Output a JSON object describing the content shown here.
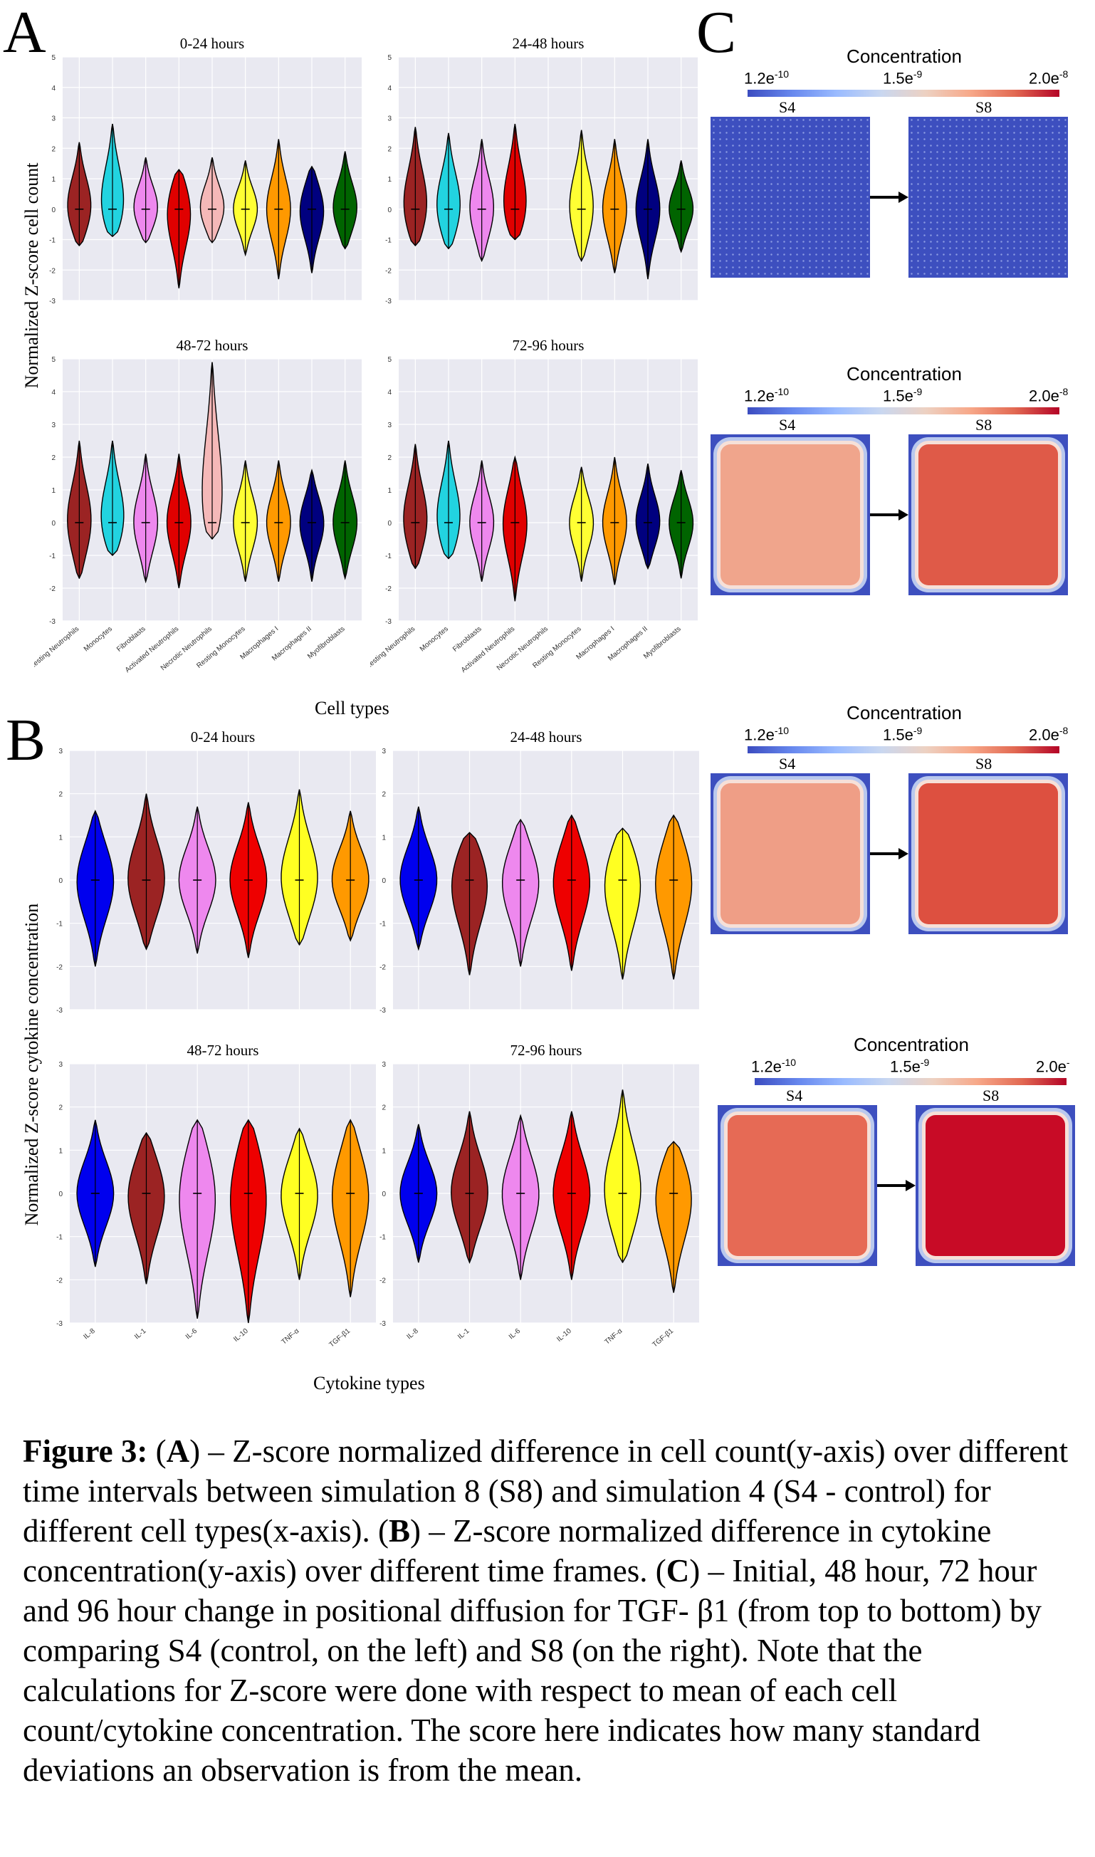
{
  "panel_letters": {
    "a": "A",
    "b": "B",
    "c": "C"
  },
  "panel_a": {
    "ylabel": "Normalized Z-score cell count",
    "xlabel": "Cell types",
    "categories": [
      "Resting Neutrophils",
      "Monocytes",
      "Fibroblasts",
      "Activated Neutrophils",
      "Necrotic Neutrophils",
      "Resting Monocytes",
      "Macrophages I",
      "Macrophages II",
      "Myofibroblasts"
    ],
    "colors": [
      "#9b2323",
      "#22d3e0",
      "#ee88ee",
      "#e00000",
      "#f5b8b8",
      "#ffff33",
      "#ff9900",
      "#00007f",
      "#006400"
    ]
  },
  "panel_b": {
    "ylabel": "Normalized Z-score cytokine concentration",
    "xlabel": "Cytokine types",
    "categories": [
      "IL-8",
      "IL-1",
      "IL-6",
      "IL-10",
      "TNF-α",
      "TGF-β1"
    ],
    "colors": [
      "#0000ee",
      "#9b2323",
      "#ee88ee",
      "#ee0000",
      "#ffff22",
      "#ff9900"
    ]
  },
  "chart_data": [
    {
      "type": "violin",
      "panel": "A",
      "title": "0-24 hours",
      "ylim": [
        -3,
        5
      ],
      "grid": true,
      "categories": [
        "Resting Neutrophils",
        "Monocytes",
        "Fibroblasts",
        "Activated Neutrophils",
        "Necrotic Neutrophils",
        "Resting Monocytes",
        "Macrophages I",
        "Macrophages II",
        "Myofibroblasts"
      ],
      "min": [
        -1.2,
        -0.9,
        -1.1,
        -2.6,
        -1.1,
        -1.5,
        -2.3,
        -2.1,
        -1.3
      ],
      "max": [
        2.2,
        2.8,
        1.7,
        1.3,
        1.7,
        1.6,
        2.3,
        1.4,
        1.9
      ],
      "median": [
        0,
        0,
        0,
        0,
        0,
        0,
        0,
        0,
        0
      ]
    },
    {
      "type": "violin",
      "panel": "A",
      "title": "24-48 hours",
      "ylim": [
        -3,
        5
      ],
      "grid": true,
      "categories": [
        "Resting Neutrophils",
        "Monocytes",
        "Fibroblasts",
        "Activated Neutrophils",
        "Necrotic Neutrophils",
        "Resting Monocytes",
        "Macrophages I",
        "Macrophages II",
        "Myofibroblasts"
      ],
      "min": [
        -1.2,
        -1.3,
        -1.7,
        -1.0,
        null,
        -1.7,
        -2.1,
        -2.3,
        -1.4
      ],
      "max": [
        2.7,
        2.5,
        2.3,
        2.8,
        null,
        2.6,
        2.3,
        2.3,
        1.6
      ],
      "median": [
        0,
        0,
        0,
        0,
        null,
        0,
        0,
        0,
        0
      ]
    },
    {
      "type": "violin",
      "panel": "A",
      "title": "48-72 hours",
      "ylim": [
        -3,
        5
      ],
      "grid": true,
      "categories": [
        "Resting Neutrophils",
        "Monocytes",
        "Fibroblasts",
        "Activated Neutrophils",
        "Necrotic Neutrophils",
        "Resting Monocytes",
        "Macrophages I",
        "Macrophages II",
        "Myofibroblasts"
      ],
      "min": [
        -1.7,
        -1.0,
        -1.8,
        -2.0,
        -0.5,
        -1.8,
        -1.8,
        -1.8,
        -1.7
      ],
      "max": [
        2.5,
        2.5,
        2.1,
        2.1,
        4.9,
        1.9,
        1.9,
        1.6,
        1.9
      ],
      "median": [
        0,
        0,
        0,
        0,
        0,
        0,
        0,
        0,
        0
      ]
    },
    {
      "type": "violin",
      "panel": "A",
      "title": "72-96 hours",
      "ylim": [
        -3,
        5
      ],
      "grid": true,
      "categories": [
        "Resting Neutrophils",
        "Monocytes",
        "Fibroblasts",
        "Activated Neutrophils",
        "Necrotic Neutrophils",
        "Resting Monocytes",
        "Macrophages I",
        "Macrophages II",
        "Myofibroblasts"
      ],
      "min": [
        -1.4,
        -1.1,
        -1.8,
        -2.4,
        null,
        -1.8,
        -1.9,
        -1.4,
        -1.7
      ],
      "max": [
        2.4,
        2.5,
        1.9,
        2.0,
        null,
        1.7,
        2.0,
        1.8,
        1.6
      ],
      "median": [
        0,
        0,
        0,
        0,
        null,
        0,
        0,
        0,
        0
      ]
    },
    {
      "type": "violin",
      "panel": "B",
      "title": "0-24 hours",
      "ylim": [
        -3,
        3
      ],
      "grid": true,
      "categories": [
        "IL-8",
        "IL-1",
        "IL-6",
        "IL-10",
        "TNF-α",
        "TGF-β1"
      ],
      "min": [
        -2.0,
        -1.6,
        -1.7,
        -1.8,
        -1.5,
        -1.4
      ],
      "max": [
        1.6,
        2.0,
        1.7,
        1.8,
        2.1,
        1.6
      ],
      "median": [
        0,
        0,
        0,
        0,
        0,
        0
      ]
    },
    {
      "type": "violin",
      "panel": "B",
      "title": "24-48 hours",
      "ylim": [
        -3,
        3
      ],
      "grid": true,
      "categories": [
        "IL-8",
        "IL-1",
        "IL-6",
        "IL-10",
        "TNF-α",
        "TGF-β1"
      ],
      "min": [
        -1.6,
        -2.2,
        -2.0,
        -2.1,
        -2.3,
        -2.3
      ],
      "max": [
        1.7,
        1.1,
        1.4,
        1.5,
        1.2,
        1.5
      ],
      "median": [
        0,
        0,
        0,
        0,
        0,
        0
      ]
    },
    {
      "type": "violin",
      "panel": "B",
      "title": "48-72 hours",
      "ylim": [
        -3,
        3
      ],
      "grid": true,
      "categories": [
        "IL-8",
        "IL-1",
        "IL-6",
        "IL-10",
        "TNF-α",
        "TGF-β1"
      ],
      "min": [
        -1.7,
        -2.1,
        -2.9,
        -3.0,
        -2.0,
        -2.4
      ],
      "max": [
        1.7,
        1.4,
        1.7,
        1.7,
        1.5,
        1.7
      ],
      "median": [
        0,
        0,
        0,
        0,
        0,
        0
      ]
    },
    {
      "type": "violin",
      "panel": "B",
      "title": "72-96 hours",
      "ylim": [
        -3,
        3
      ],
      "grid": true,
      "categories": [
        "IL-8",
        "IL-1",
        "IL-6",
        "IL-10",
        "TNF-α",
        "TGF-β1"
      ],
      "min": [
        -1.6,
        -1.6,
        -2.0,
        -2.0,
        -1.6,
        -2.3
      ],
      "max": [
        1.6,
        1.9,
        1.8,
        1.9,
        2.4,
        1.2
      ],
      "median": [
        0,
        0,
        0,
        0,
        0,
        0
      ]
    }
  ],
  "panel_c": {
    "rows": [
      {
        "title": "Concentration",
        "min_label": "1.2e",
        "min_exp": "-10",
        "mid_label": "1.5e",
        "mid_exp": "-9",
        "max_label": "2.0e",
        "max_exp": "-8",
        "left_label": "S4",
        "right_label": "S8",
        "left_fill": "#3d4fbf",
        "right_fill": "#3d4fbf",
        "speckle": true
      },
      {
        "title": "Concentration",
        "min_label": "1.2e",
        "min_exp": "-10",
        "mid_label": "1.5e",
        "mid_exp": "-9",
        "max_label": "2.0e",
        "max_exp": "-8",
        "left_label": "S4",
        "right_label": "S8",
        "left_fill": "#f0a58c",
        "right_fill": "#df5a48"
      },
      {
        "title": "Concentration",
        "min_label": "1.2e",
        "min_exp": "-10",
        "mid_label": "1.5e",
        "mid_exp": "-9",
        "max_label": "2.0e",
        "max_exp": "-8",
        "left_label": "S4",
        "right_label": "S8",
        "left_fill": "#ef9e86",
        "right_fill": "#dd5040"
      },
      {
        "title": "Concentration",
        "min_label": "1.2e",
        "min_exp": "-10",
        "mid_label": "1.5e",
        "mid_exp": "-9",
        "max_label": "2.0e",
        "max_exp": "-",
        "left_label": "S4",
        "right_label": "S8",
        "left_fill": "#e66a55",
        "right_fill": "#c80b26"
      }
    ],
    "colormap": [
      "#3b4cc0",
      "#6788ee",
      "#9abbff",
      "#c9d7f0",
      "#edd1c2",
      "#f7a889",
      "#e26952",
      "#b40426"
    ]
  },
  "caption": {
    "label": "Figure 3:",
    "text_1": " (",
    "a": "A",
    "text_2": ") – Z-score normalized difference in cell count(y-axis) over different time intervals between simulation 8 (S8) and simulation 4 (S4 - control) for different cell types(x-axis). (",
    "b": "B",
    "text_3": ") – Z-score normalized difference in cytokine concentration(y-axis) over different time frames. (",
    "c": "C",
    "text_4": ") – Initial, 48 hour, 72 hour and 96 hour change in positional diffusion for TGF- β1 (from top to bottom) by comparing S4 (control, on the left) and S8 (on the right). Note that the calculations for Z-score were done with respect to mean of each cell count/cytokine concentration. The score here indicates how many standard deviations an observation is from the mean."
  }
}
